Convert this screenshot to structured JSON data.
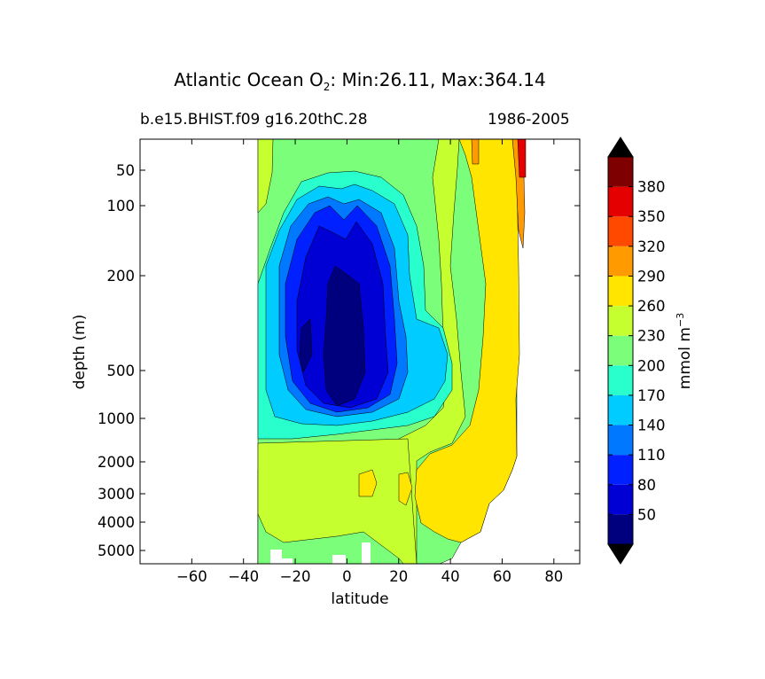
{
  "chart_data": {
    "type": "contourf",
    "title_prefix": "Atlantic Ocean O",
    "title_subscript": "2",
    "title_suffix": ": Min:26.11, Max:364.14",
    "subtitle_left": "b.e15.BHIST.f09 g16.20thC.28",
    "subtitle_right": "1986-2005",
    "xlabel": "latitude",
    "ylabel": "depth (m)",
    "x_ticks": [
      -60,
      -40,
      -20,
      0,
      20,
      40,
      60,
      80
    ],
    "y_ticks": [
      50,
      100,
      200,
      500,
      1000,
      2000,
      3000,
      4000,
      5000
    ],
    "xlim": [
      -80,
      90
    ],
    "colorbar": {
      "label": "mmol m",
      "label_sup": "−3",
      "levels": [
        20,
        50,
        80,
        110,
        140,
        170,
        200,
        230,
        260,
        290,
        320,
        350,
        380,
        410
      ],
      "tick_labels": [
        "50",
        "80",
        "110",
        "140",
        "170",
        "200",
        "230",
        "260",
        "290",
        "320",
        "350",
        "380"
      ],
      "colors": [
        "#00007f",
        "#0000d4",
        "#0020ff",
        "#0078ff",
        "#00ccff",
        "#28ffcd",
        "#7bff7b",
        "#c6ff30",
        "#ffe500",
        "#ff9a00",
        "#ff4800",
        "#e40000",
        "#7f0000"
      ],
      "under_color": "#000000",
      "over_color": "#000000"
    }
  }
}
